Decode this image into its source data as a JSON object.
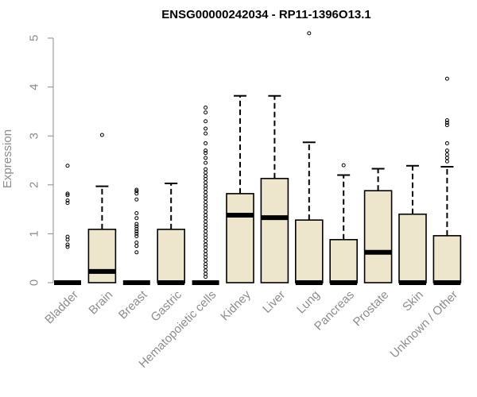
{
  "chart_data": {
    "type": "box",
    "title": "ENSG00000242034 - RP11-1396O13.1",
    "ylabel": "Expression",
    "xlabel": "",
    "ylim": [
      0,
      5
    ],
    "yticks": [
      "0",
      "1",
      "2",
      "3",
      "4",
      "5"
    ],
    "grid": false,
    "box_fill": "#ede6cc",
    "categories": [
      "Bladder",
      "Brain",
      "Breast",
      "Gastric",
      "Hematopoietic cells",
      "Kidney",
      "Liver",
      "Lung",
      "Pancreas",
      "Prostate",
      "Skin",
      "Unknown / Other"
    ],
    "boxes": [
      {
        "q1": 0,
        "median": 0,
        "q3": 0,
        "whisker_low": 0,
        "whisker_high": 0,
        "outliers": [
          0.73,
          0.78,
          0.88,
          0.94,
          1.63,
          1.68,
          1.79,
          1.82,
          2.39
        ]
      },
      {
        "q1": 0,
        "median": 0.23,
        "q3": 1.09,
        "whisker_low": 0,
        "whisker_high": 1.97,
        "outliers": [
          3.02
        ]
      },
      {
        "q1": 0,
        "median": 0,
        "q3": 0,
        "whisker_low": 0,
        "whisker_high": 0,
        "outliers": [
          0.62,
          0.75,
          0.82,
          0.95,
          1.0,
          1.05,
          1.1,
          1.15,
          1.2,
          1.32,
          1.42,
          1.7,
          1.82,
          1.87,
          1.9
        ]
      },
      {
        "q1": 0,
        "median": 0,
        "q3": 1.09,
        "whisker_low": 0,
        "whisker_high": 2.03,
        "outliers": []
      },
      {
        "q1": 0,
        "median": 0,
        "q3": 0,
        "whisker_low": 0,
        "whisker_high": 0,
        "outliers": [
          0.12,
          0.18,
          0.25,
          0.32,
          0.38,
          0.45,
          0.52,
          0.58,
          0.65,
          0.72,
          0.78,
          0.85,
          0.92,
          0.98,
          1.05,
          1.12,
          1.18,
          1.25,
          1.32,
          1.38,
          1.45,
          1.52,
          1.58,
          1.65,
          1.72,
          1.78,
          1.85,
          1.92,
          1.98,
          2.05,
          2.12,
          2.18,
          2.25,
          2.32,
          2.45,
          2.55,
          2.65,
          2.7,
          2.85,
          3.05,
          3.15,
          3.3,
          3.48,
          3.58
        ]
      },
      {
        "q1": 0,
        "median": 1.38,
        "q3": 1.82,
        "whisker_low": 0,
        "whisker_high": 3.82,
        "outliers": []
      },
      {
        "q1": 0,
        "median": 1.33,
        "q3": 2.13,
        "whisker_low": 0,
        "whisker_high": 3.82,
        "outliers": []
      },
      {
        "q1": 0,
        "median": 0,
        "q3": 1.28,
        "whisker_low": 0,
        "whisker_high": 2.87,
        "outliers": [
          5.1
        ]
      },
      {
        "q1": 0,
        "median": 0,
        "q3": 0.88,
        "whisker_low": 0,
        "whisker_high": 2.2,
        "outliers": [
          2.4
        ]
      },
      {
        "q1": 0,
        "median": 0.62,
        "q3": 1.88,
        "whisker_low": 0,
        "whisker_high": 2.33,
        "outliers": []
      },
      {
        "q1": 0,
        "median": 0,
        "q3": 1.4,
        "whisker_low": 0,
        "whisker_high": 2.39,
        "outliers": []
      },
      {
        "q1": 0,
        "median": 0,
        "q3": 0.96,
        "whisker_low": 0,
        "whisker_high": 2.37,
        "outliers": [
          2.48,
          2.55,
          2.62,
          2.7,
          2.85,
          3.22,
          3.27,
          3.32,
          4.17
        ]
      }
    ]
  }
}
